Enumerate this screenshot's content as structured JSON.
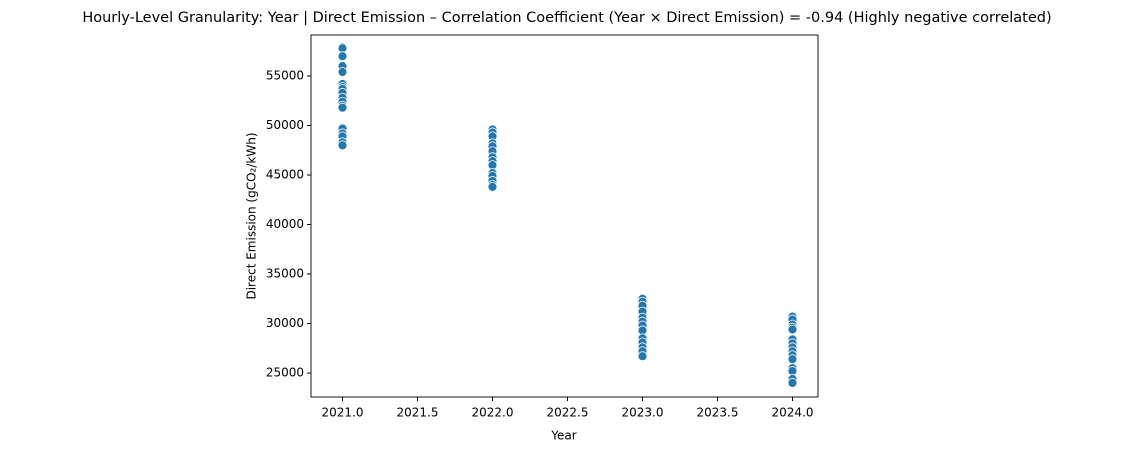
{
  "chart_data": {
    "type": "scatter",
    "title": "Hourly-Level Granularity: Year | Direct Emission – Correlation Coefficient (Year × Direct Emission) = -0.94 (Highly negative correlated)",
    "x_label": "Year",
    "y_label": "Direct Emission (gCO₂/kWh)",
    "color": "#1f77b4",
    "grid": false,
    "xlim": [
      2020.79,
      2024.17
    ],
    "ylim": [
      22580,
      59140
    ],
    "xticks": [
      {
        "value": 2021,
        "label": "2021.0"
      },
      {
        "value": 2021.5,
        "label": "2021.5"
      },
      {
        "value": 2022,
        "label": "2022.0"
      },
      {
        "value": 2022.5,
        "label": "2022.5"
      },
      {
        "value": 2023,
        "label": "2023.0"
      },
      {
        "value": 2023.5,
        "label": "2023.5"
      },
      {
        "value": 2024,
        "label": "2024.0"
      }
    ],
    "yticks": [
      25000,
      30000,
      35000,
      40000,
      45000,
      50000,
      55000
    ],
    "x": [
      2021,
      2021,
      2021,
      2021,
      2021,
      2021,
      2021,
      2021,
      2021,
      2021,
      2021,
      2021,
      2021,
      2021,
      2021,
      2021,
      2021,
      2021,
      2022,
      2022,
      2022,
      2022,
      2022,
      2022,
      2022,
      2022,
      2022,
      2022,
      2022,
      2022,
      2022,
      2022,
      2023,
      2023,
      2023,
      2023,
      2023,
      2023,
      2023,
      2023,
      2023,
      2023,
      2023,
      2023,
      2023,
      2024,
      2024,
      2024,
      2024,
      2024,
      2024,
      2024,
      2024,
      2024,
      2024,
      2024,
      2024,
      2024,
      2024,
      2024
    ],
    "values": [
      57900,
      57800,
      57000,
      56000,
      55400,
      54200,
      53900,
      53700,
      53300,
      52800,
      52400,
      52000,
      51800,
      49700,
      49200,
      48900,
      48300,
      48000,
      49600,
      49300,
      48900,
      48200,
      47900,
      47400,
      46800,
      46400,
      46000,
      45200,
      44900,
      44400,
      44000,
      43800,
      32500,
      32200,
      31800,
      31200,
      30600,
      30200,
      29800,
      29300,
      28500,
      28100,
      27600,
      27200,
      26700,
      30700,
      30400,
      29900,
      29600,
      29400,
      28400,
      28000,
      27600,
      27200,
      26800,
      26400,
      25500,
      25200,
      24400,
      24000
    ]
  }
}
